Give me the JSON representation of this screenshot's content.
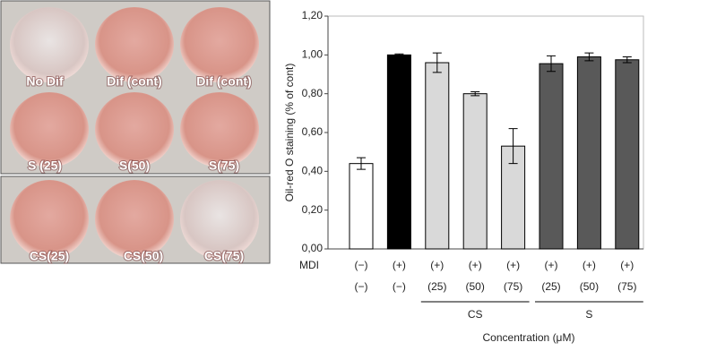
{
  "chart_data": {
    "type": "bar",
    "y_label": "Oil-red O staining (% of cont)",
    "x_label": "Concentration (μM)",
    "row_label": "MDI",
    "categories": [
      "(−)",
      "(+)",
      "(+)",
      "(+)",
      "(+)",
      "(+)",
      "(+)",
      "(+)"
    ],
    "sub_categories": [
      "(−)",
      "(−)",
      "(25)",
      "(50)",
      "(75)",
      "(25)",
      "(50)",
      "(75)"
    ],
    "groups": [
      {
        "label": "CS",
        "from": 2,
        "to": 4
      },
      {
        "label": "S",
        "from": 5,
        "to": 7
      }
    ],
    "values": [
      0.44,
      1.0,
      0.96,
      0.8,
      0.53,
      0.955,
      0.99,
      0.975
    ],
    "errors": [
      0.03,
      0.005,
      0.05,
      0.01,
      0.09,
      0.04,
      0.02,
      0.015
    ],
    "colors": [
      "#ffffff",
      "#000000",
      "#d9d9d9",
      "#d9d9d9",
      "#d9d9d9",
      "#595959",
      "#595959",
      "#595959"
    ],
    "ylim": [
      0,
      1.2
    ],
    "yticks": [
      {
        "value": 0,
        "label": "0,00"
      },
      {
        "value": 0.2,
        "label": "0,20"
      },
      {
        "value": 0.4,
        "label": "0,40"
      },
      {
        "value": 0.6,
        "label": "0,60"
      },
      {
        "value": 0.8,
        "label": "0,80"
      },
      {
        "value": 1.0,
        "label": "1,00"
      },
      {
        "value": 1.2,
        "label": "1,20"
      }
    ]
  },
  "photo_labels": [
    "No Dif",
    "Dif (cont)",
    "Dif (cont)",
    "S (25)",
    "S(50)",
    "S(75)",
    "CS(25)",
    "CS(50)",
    "CS(75)"
  ]
}
